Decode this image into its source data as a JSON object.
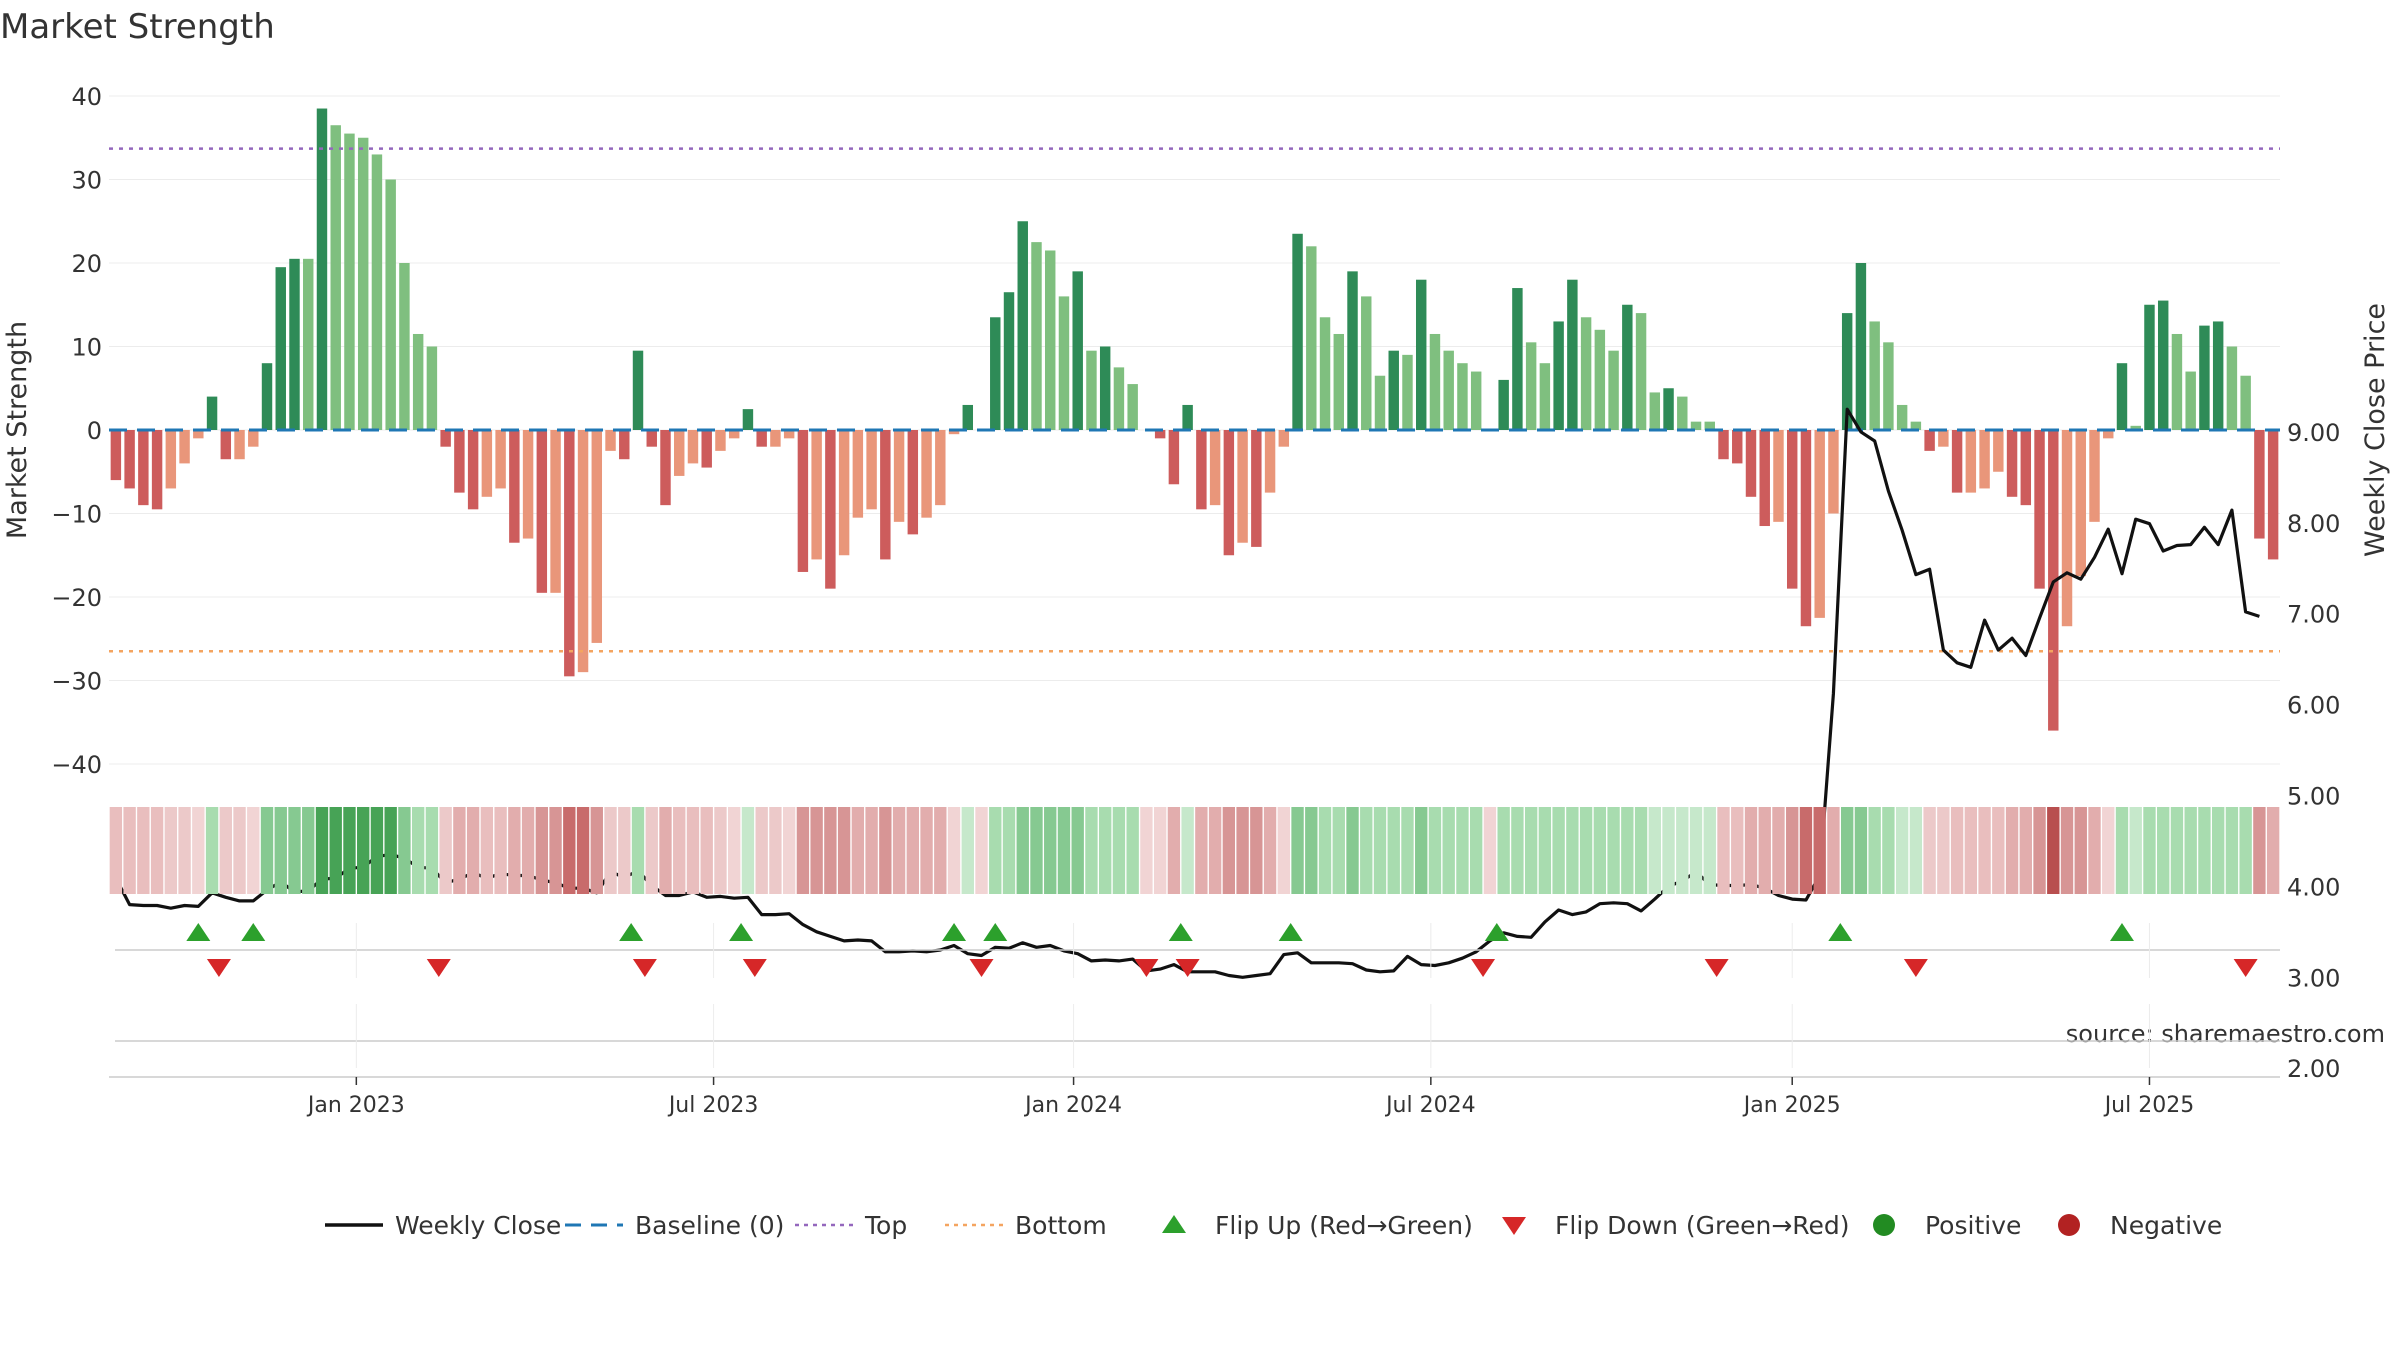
{
  "chart_data": {
    "type": "bar",
    "title": "Market Strength",
    "ylabel": "Market Strength",
    "y2label": "Weekly Close Price",
    "ylim": [
      -45,
      41
    ],
    "y_ticks": [
      40,
      30,
      20,
      10,
      0,
      -10,
      -20,
      -30,
      -40
    ],
    "y2lim": [
      1.9,
      9.9
    ],
    "y2_ticks": [
      "9.00",
      "8.00",
      "7.00",
      "6.00",
      "5.00",
      "4.00",
      "3.00",
      "2.00"
    ],
    "x_ticks": [
      {
        "label": "Jan 2023",
        "index": 17.5
      },
      {
        "label": "Jul 2023",
        "index": 43.5
      },
      {
        "label": "Jan 2024",
        "index": 69.7
      },
      {
        "label": "Jul 2024",
        "index": 95.7
      },
      {
        "label": "Jan 2025",
        "index": 122
      },
      {
        "label": "Jul 2025",
        "index": 148
      }
    ],
    "strength": [
      -6,
      -7,
      -9,
      -9.5,
      -7,
      -4,
      -1,
      4,
      -3.5,
      -3.5,
      -2,
      8,
      19.5,
      20.5,
      20.5,
      38.5,
      36.5,
      35.5,
      35,
      33,
      30,
      20,
      11.5,
      10,
      -2,
      -7.5,
      -9.5,
      -8,
      -7,
      -13.5,
      -13,
      -19.5,
      -19.5,
      -29.5,
      -29,
      -25.5,
      -2.5,
      -3.5,
      9.5,
      -2,
      -9,
      -5.5,
      -4,
      -4.5,
      -2.5,
      -1,
      2.5,
      -2,
      -2,
      -1,
      -17,
      -15.5,
      -19,
      -15,
      -10.5,
      -9.5,
      -15.5,
      -11,
      -12.5,
      -10.5,
      -9,
      -0.5,
      3,
      0,
      13.5,
      16.5,
      25,
      22.5,
      21.5,
      16,
      19,
      9.5,
      10,
      7.5,
      5.5,
      0,
      -1,
      -6.5,
      3,
      -9.5,
      -9,
      -15,
      -13.5,
      -14,
      -7.5,
      -2,
      23.5,
      22,
      13.5,
      11.5,
      19,
      16,
      6.5,
      9.5,
      9,
      18,
      11.5,
      9.5,
      8,
      7,
      0,
      6,
      17,
      10.5,
      8,
      13,
      18,
      13.5,
      12,
      9.5,
      15,
      14,
      4.5,
      5,
      4,
      1,
      1,
      -3.5,
      -4,
      -8,
      -11.5,
      -11,
      -19,
      -23.5,
      -22.5,
      -10,
      14,
      20,
      13,
      10.5,
      3,
      1,
      -2.5,
      -2,
      -7.5,
      -7.5,
      -7,
      -5,
      -8,
      -9,
      -19,
      -36,
      -23.5,
      -17.5,
      -11,
      -1,
      8,
      0.5,
      15,
      15.5,
      11.5,
      7,
      12.5,
      13,
      10,
      6.5,
      -13,
      -15.5
    ],
    "weekly_close": [
      4.09,
      3.8,
      3.79,
      3.79,
      3.76,
      3.79,
      3.78,
      3.93,
      3.88,
      3.84,
      3.84,
      3.96,
      4.05,
      3.94,
      3.95,
      4.08,
      4.09,
      4.2,
      4.21,
      4.33,
      4.35,
      4.31,
      4.21,
      4.2,
      4.04,
      4.08,
      4.15,
      4.09,
      4.14,
      4.12,
      4.12,
      4.07,
      4.04,
      3.98,
      3.98,
      3.93,
      4.16,
      4.1,
      4.17,
      4.01,
      3.9,
      3.9,
      3.94,
      3.88,
      3.89,
      3.87,
      3.88,
      3.69,
      3.69,
      3.7,
      3.58,
      3.5,
      3.45,
      3.4,
      3.41,
      3.4,
      3.28,
      3.28,
      3.29,
      3.28,
      3.3,
      3.35,
      3.26,
      3.24,
      3.33,
      3.32,
      3.38,
      3.33,
      3.35,
      3.29,
      3.26,
      3.18,
      3.19,
      3.18,
      3.2,
      3.07,
      3.09,
      3.14,
      3.06,
      3.06,
      3.06,
      3.02,
      3.0,
      3.02,
      3.04,
      3.25,
      3.27,
      3.16,
      3.16,
      3.16,
      3.15,
      3.08,
      3.06,
      3.07,
      3.23,
      3.14,
      3.13,
      3.16,
      3.21,
      3.28,
      3.4,
      3.49,
      3.45,
      3.44,
      3.61,
      3.74,
      3.69,
      3.72,
      3.81,
      3.82,
      3.81,
      3.73,
      3.86,
      4.0,
      4.06,
      4.16,
      4.02,
      4.01,
      4.01,
      4.02,
      3.98,
      3.9,
      3.86,
      3.85,
      4.12,
      6.12,
      9.25,
      9.0,
      8.9,
      8.35,
      7.92,
      7.43,
      7.49,
      6.6,
      6.46,
      6.41,
      6.93,
      6.6,
      6.73,
      6.54,
      6.95,
      7.35,
      7.45,
      7.38,
      7.62,
      7.93,
      7.44,
      8.04,
      7.99,
      7.69,
      7.75,
      7.76,
      7.95,
      7.76,
      8.14,
      7.02,
      6.97
    ],
    "flips_up": [
      6,
      10,
      37.5,
      45.5,
      61,
      64,
      77.5,
      85.5,
      100.5,
      125.5,
      146
    ],
    "flips_down": [
      7.5,
      23.5,
      38.5,
      46.5,
      63,
      75,
      78,
      99.5,
      116.5,
      131,
      155
    ],
    "heat_shades": [
      "#e9bebe",
      "#e9bebe",
      "#e9bebe",
      "#e9bebe",
      "#ecc9c9",
      "#ecc9c9",
      "#f1d4d4",
      "#a8dcaf",
      "#ecc9c9",
      "#ecc9c9",
      "#f1d4d4",
      "#86c991",
      "#86c991",
      "#86c991",
      "#86c991",
      "#47a356",
      "#47a356",
      "#47a356",
      "#47a356",
      "#47a356",
      "#47a356",
      "#86c991",
      "#a8dcaf",
      "#a8dcaf",
      "#ecc9c9",
      "#e2adad",
      "#e2adad",
      "#e9bebe",
      "#e9bebe",
      "#e2adad",
      "#e2adad",
      "#d79595",
      "#d79595",
      "#c86b6b",
      "#c86b6b",
      "#d79595",
      "#ecc9c9",
      "#ecc9c9",
      "#a8dcaf",
      "#ecc9c9",
      "#e2adad",
      "#e9bebe",
      "#e9bebe",
      "#e9bebe",
      "#ecc9c9",
      "#f1d4d4",
      "#c6e8cb",
      "#ecc9c9",
      "#ecc9c9",
      "#f1d4d4",
      "#d79595",
      "#d79595",
      "#d79595",
      "#d79595",
      "#e2adad",
      "#e2adad",
      "#d79595",
      "#e2adad",
      "#e2adad",
      "#e2adad",
      "#e2adad",
      "#f1d4d4",
      "#c6e8cb",
      "#f1d4d4",
      "#a8dcaf",
      "#a8dcaf",
      "#86c991",
      "#86c991",
      "#86c991",
      "#86c991",
      "#86c991",
      "#a8dcaf",
      "#a8dcaf",
      "#a8dcaf",
      "#a8dcaf",
      "#f1d4d4",
      "#f1d4d4",
      "#e2adad",
      "#c6e8cb",
      "#e2adad",
      "#e2adad",
      "#d79595",
      "#d79595",
      "#d79595",
      "#e2adad",
      "#f1d4d4",
      "#86c991",
      "#86c991",
      "#a8dcaf",
      "#a8dcaf",
      "#86c991",
      "#a8dcaf",
      "#a8dcaf",
      "#a8dcaf",
      "#a8dcaf",
      "#86c991",
      "#a8dcaf",
      "#a8dcaf",
      "#a8dcaf",
      "#a8dcaf",
      "#f1d4d4",
      "#a8dcaf",
      "#a8dcaf",
      "#a8dcaf",
      "#a8dcaf",
      "#a8dcaf",
      "#a8dcaf",
      "#a8dcaf",
      "#a8dcaf",
      "#a8dcaf",
      "#a8dcaf",
      "#a8dcaf",
      "#c6e8cb",
      "#c6e8cb",
      "#c6e8cb",
      "#c6e8cb",
      "#c6e8cb",
      "#e9bebe",
      "#e9bebe",
      "#e2adad",
      "#e2adad",
      "#e2adad",
      "#d79595",
      "#c86b6b",
      "#c86b6b",
      "#e2adad",
      "#86c991",
      "#86c991",
      "#a8dcaf",
      "#a8dcaf",
      "#c6e8cb",
      "#c6e8cb",
      "#ecc9c9",
      "#ecc9c9",
      "#e9bebe",
      "#e9bebe",
      "#e9bebe",
      "#e9bebe",
      "#e2adad",
      "#e2adad",
      "#d79595",
      "#b84f4f",
      "#d79595",
      "#d79595",
      "#e2adad",
      "#f1d4d4",
      "#a8dcaf",
      "#c6e8cb",
      "#a8dcaf",
      "#a8dcaf",
      "#a8dcaf",
      "#a8dcaf",
      "#a8dcaf",
      "#a8dcaf",
      "#a8dcaf",
      "#a8dcaf",
      "#d79595",
      "#e2adad"
    ],
    "top_line": 33.7,
    "bottom_line": -26.5,
    "legend_position": "bottom",
    "legend": [
      {
        "label": "Weekly Close",
        "kind": "line",
        "color": "#111111"
      },
      {
        "label": "Baseline (0)",
        "kind": "dash",
        "color": "#1f77b4"
      },
      {
        "label": "Top",
        "kind": "dot",
        "color": "#9467bd"
      },
      {
        "label": "Bottom",
        "kind": "dot",
        "color": "#f4a460"
      },
      {
        "label": "Flip Up (Red→Green)",
        "kind": "tri-up",
        "color": "#2ca02c"
      },
      {
        "label": "Flip Down (Green→Red)",
        "kind": "tri-down",
        "color": "#d62728"
      },
      {
        "label": "Positive",
        "kind": "circle",
        "color": "#228b22"
      },
      {
        "label": "Negative",
        "kind": "circle",
        "color": "#b22222"
      }
    ],
    "source": "source: sharemaestro.com"
  },
  "colors": {
    "pos_dark": "#2e8b57",
    "pos_light": "#7fbf7f",
    "neg_dark": "#cd5c5c",
    "neg_light": "#e9967a",
    "baseline": "#1f77b4",
    "top": "#9467bd",
    "bottom": "#f4a460",
    "price": "#111111",
    "flip_up": "#2ca02c",
    "flip_down": "#d62728"
  }
}
